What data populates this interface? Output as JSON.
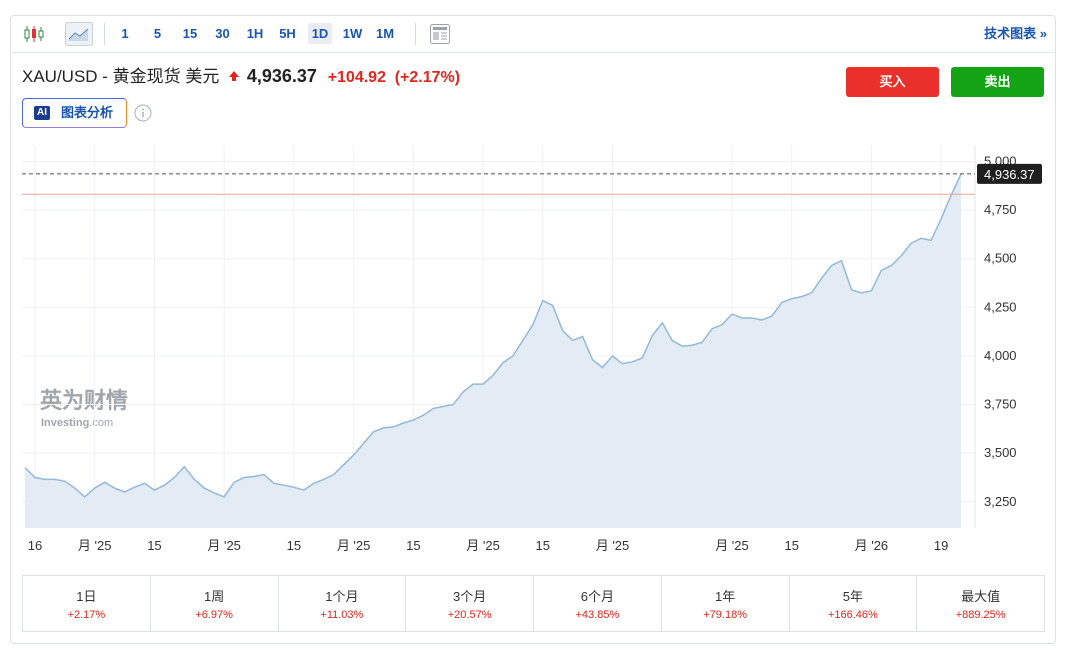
{
  "toolbar": {
    "intervals": [
      "1",
      "5",
      "15",
      "30",
      "1H",
      "5H",
      "1D",
      "1W",
      "1M"
    ],
    "active": "1D",
    "link": "技术图表 »"
  },
  "header": {
    "title": "XAU/USD - 黄金现货 美元",
    "price": "4,936.37",
    "change": "+104.92",
    "change_percent": "(+2.17%)",
    "buy": "买入",
    "sell": "卖出",
    "ai_badge": "AI",
    "ai_label": "图表分析"
  },
  "watermark": {
    "brand": "英为财情",
    "site": "Investing",
    "suffix": ".com"
  },
  "chart_data": {
    "type": "area",
    "categories": [
      null,
      "16",
      null,
      null,
      null,
      null,
      null,
      "月 '25",
      null,
      null,
      null,
      null,
      null,
      "15",
      null,
      null,
      null,
      null,
      null,
      null,
      "月 '25",
      null,
      null,
      null,
      null,
      null,
      null,
      "15",
      null,
      null,
      null,
      null,
      null,
      "月 '25",
      null,
      null,
      null,
      null,
      null,
      "15",
      null,
      null,
      null,
      null,
      null,
      null,
      "月 '25",
      null,
      null,
      null,
      null,
      null,
      "15",
      null,
      null,
      null,
      null,
      null,
      null,
      "月 '25",
      null,
      null,
      null,
      null,
      null,
      null,
      null,
      null,
      null,
      null,
      null,
      "月 '25",
      null,
      null,
      null,
      null,
      null,
      "15",
      null,
      null,
      null,
      null,
      null,
      null,
      null,
      "月 '26",
      null,
      null,
      null,
      null,
      null,
      null,
      "19",
      null,
      null
    ],
    "series": [
      {
        "name": "XAU/USD",
        "color": "#93b8d8",
        "fill": "#e3ecf5",
        "values": [
          3425,
          3375,
          3365,
          3365,
          3355,
          3320,
          3275,
          3320,
          3350,
          3320,
          3300,
          3325,
          3345,
          3310,
          3335,
          3375,
          3430,
          3365,
          3320,
          3295,
          3275,
          3350,
          3375,
          3380,
          3390,
          3345,
          3335,
          3325,
          3310,
          3345,
          3365,
          3390,
          3440,
          3490,
          3550,
          3610,
          3630,
          3635,
          3655,
          3670,
          3695,
          3730,
          3740,
          3750,
          3815,
          3855,
          3855,
          3900,
          3965,
          4000,
          4080,
          4160,
          4285,
          4260,
          4130,
          4080,
          4100,
          3980,
          3940,
          4000,
          3960,
          3970,
          3990,
          4105,
          4170,
          4080,
          4050,
          4055,
          4070,
          4140,
          4160,
          4215,
          4195,
          4195,
          4185,
          4205,
          4275,
          4295,
          4305,
          4325,
          4400,
          4465,
          4490,
          4340,
          4325,
          4335,
          4440,
          4465,
          4515,
          4580,
          4605,
          4595,
          4705,
          4825,
          4936.37
        ]
      }
    ],
    "last_label": "4,936.37",
    "reference_line": 4831.45,
    "ylim": [
      3115,
      5085
    ],
    "yticks": [
      {
        "value": 3250,
        "label": "3,250"
      },
      {
        "value": 3500,
        "label": "3,500"
      },
      {
        "value": 3750,
        "label": "3,750"
      },
      {
        "value": 4000,
        "label": "4,000"
      },
      {
        "value": 4250,
        "label": "4,250"
      },
      {
        "value": 4500,
        "label": "4,500"
      },
      {
        "value": 4750,
        "label": "4,750"
      },
      {
        "value": 5000,
        "label": "5,000"
      }
    ],
    "grid": true
  },
  "performance": {
    "periods": [
      "1日",
      "1周",
      "1个月",
      "3个月",
      "6个月",
      "1年",
      "5年",
      "最大值"
    ],
    "changes": [
      "+2.17%",
      "+6.97%",
      "+11.03%",
      "+20.57%",
      "+43.85%",
      "+79.18%",
      "+166.46%",
      "+889.25%"
    ]
  }
}
